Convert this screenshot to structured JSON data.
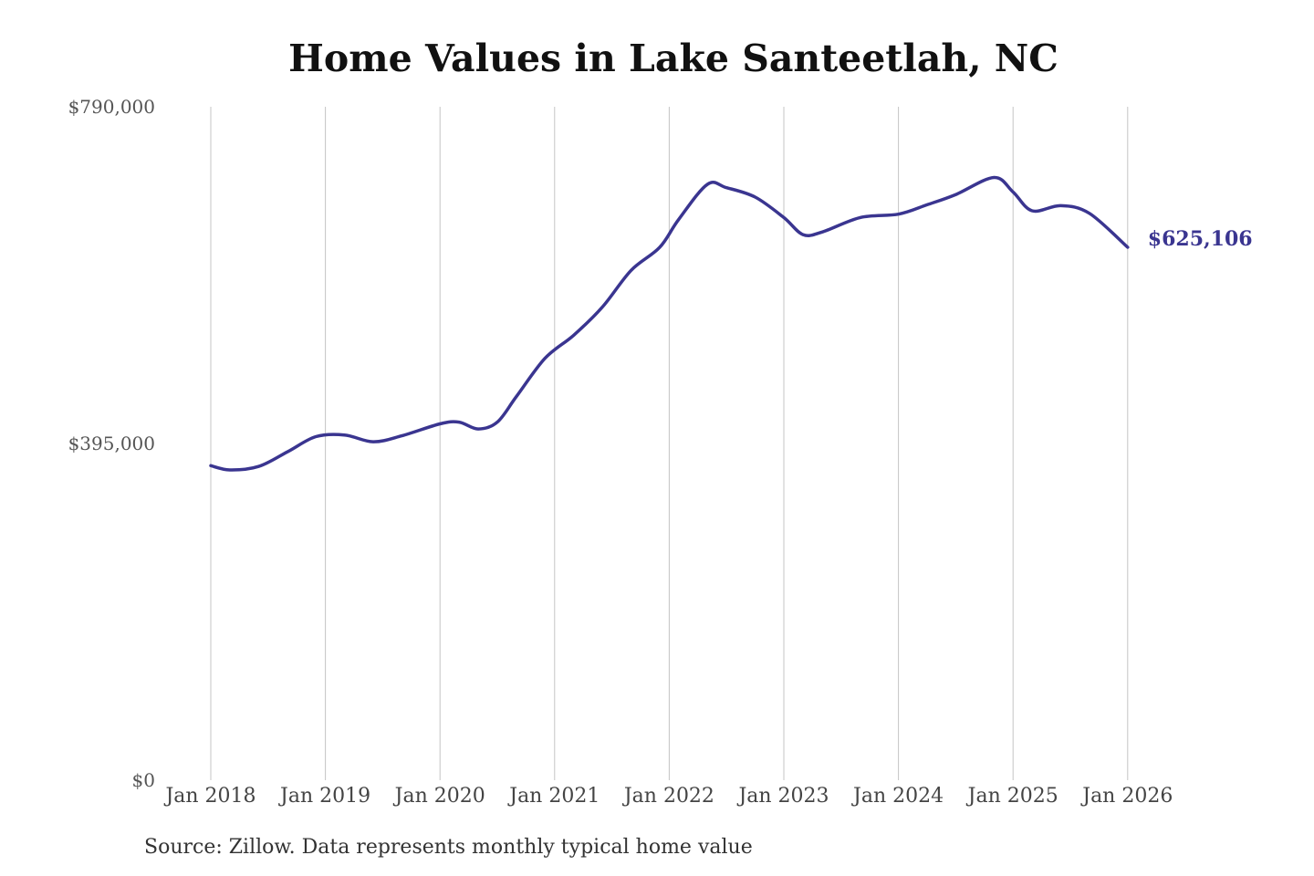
{
  "chart_data": {
    "type": "line",
    "title": "Home Values in Lake Santeetlah, NC",
    "xlabel": "",
    "ylabel": "",
    "ylim": [
      0,
      790000
    ],
    "y_ticks": [
      "$0",
      "$395,000",
      "$790,000"
    ],
    "y_tick_values": [
      0,
      395000,
      790000
    ],
    "x_ticks": [
      "Jan 2018",
      "Jan 2019",
      "Jan 2020",
      "Jan 2021",
      "Jan 2022",
      "Jan 2023",
      "Jan 2024",
      "Jan 2025",
      "Jan 2026"
    ],
    "x_tick_dates": [
      "2018-01",
      "2019-01",
      "2020-01",
      "2021-01",
      "2022-01",
      "2023-01",
      "2024-01",
      "2025-01",
      "2026-01"
    ],
    "grid": "vertical",
    "line_color": "#3a3590",
    "end_label": "$625,106",
    "series": [
      {
        "dates": [
          "2018-01",
          "2018-03",
          "2018-06",
          "2018-09",
          "2018-12",
          "2019-03",
          "2019-06",
          "2019-09",
          "2020-01",
          "2020-03",
          "2020-05",
          "2020-07",
          "2020-09",
          "2020-12",
          "2021-03",
          "2021-06",
          "2021-09",
          "2021-12",
          "2022-02",
          "2022-05",
          "2022-07",
          "2022-10",
          "2023-01",
          "2023-03",
          "2023-05",
          "2023-09",
          "2024-01",
          "2024-04",
          "2024-07",
          "2024-11",
          "2025-01",
          "2025-03",
          "2025-06",
          "2025-09",
          "2026-01"
        ],
        "values": [
          369000,
          364000,
          368000,
          385000,
          403000,
          405000,
          397000,
          404000,
          418000,
          420000,
          412000,
          420000,
          450000,
          495000,
          522000,
          555000,
          598000,
          625000,
          658000,
          699000,
          695000,
          684000,
          660000,
          640000,
          643000,
          660000,
          664000,
          675000,
          687000,
          707000,
          690000,
          668000,
          674000,
          665000,
          625106
        ]
      }
    ]
  },
  "source_note": "Source: Zillow. Data represents monthly typical home value"
}
